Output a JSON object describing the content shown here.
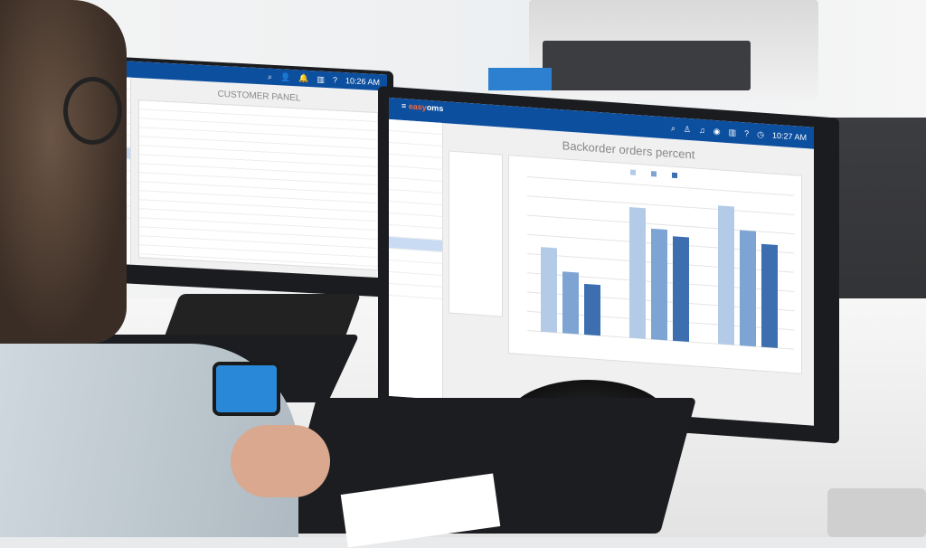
{
  "left_monitor": {
    "app_time": "10:26 AM",
    "panel_title": "CUSTOMER PANEL",
    "header_icons": [
      "search-icon",
      "user-icon",
      "bell-icon",
      "brand-icon",
      "chart-icon",
      "help-icon",
      "clock-icon"
    ]
  },
  "right_monitor": {
    "logo_prefix": "easy",
    "logo_suffix": "oms",
    "time": "10:27 AM",
    "panel_title": "Backorder orders percent",
    "header_icons": [
      "menu-icon",
      "search-icon",
      "user-icon",
      "bell-icon",
      "brand-icon",
      "chart-icon",
      "help-icon",
      "clock-icon"
    ],
    "colors": {
      "header": "#0d4f9f",
      "series_light": "#b4cbe7",
      "series_mid": "#7ea4d3",
      "series_dark": "#3d6fb0"
    },
    "chart": {
      "type": "bar",
      "groups": 3,
      "series_count": 3,
      "values_relative": [
        [
          0.55,
          0.4,
          0.33
        ],
        [
          0.85,
          0.72,
          0.68
        ],
        [
          0.9,
          0.75,
          0.67
        ]
      ]
    }
  }
}
